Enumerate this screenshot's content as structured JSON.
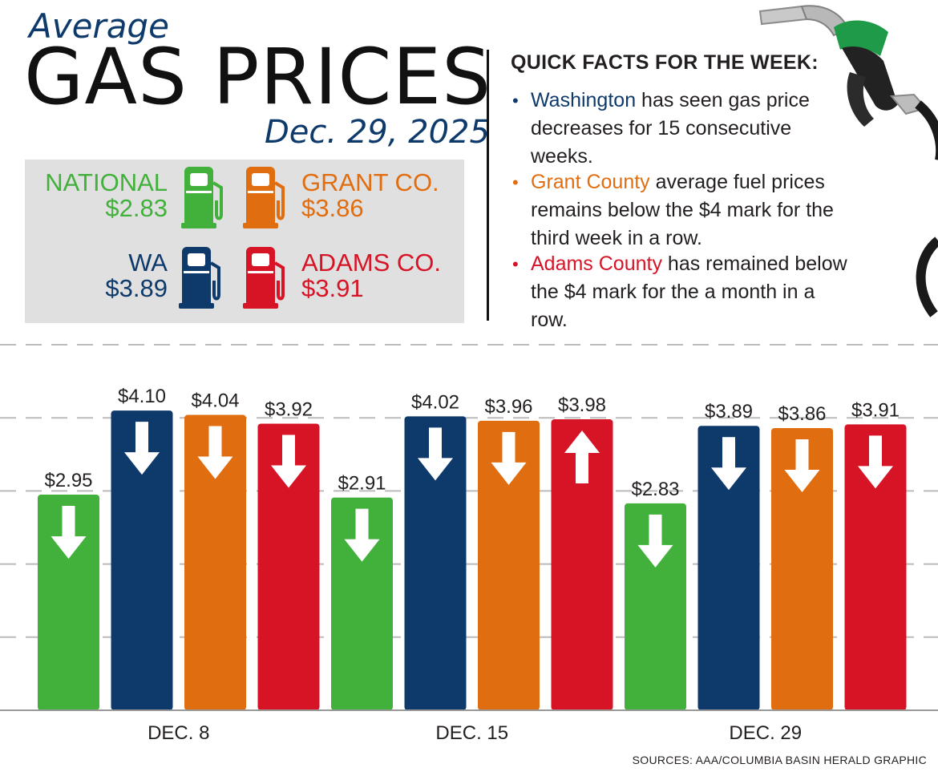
{
  "header": {
    "supertitle": "Average",
    "title": "GAS PRICES",
    "date": "Dec. 29, 2025"
  },
  "summary": {
    "national": {
      "label": "NATIONAL",
      "value": "$2.83",
      "color": "#41b13b"
    },
    "grant": {
      "label": "GRANT CO.",
      "value": "$3.86",
      "color": "#e06e10"
    },
    "wa": {
      "label": "WA",
      "value": "$3.89",
      "color": "#0e3a6b"
    },
    "adams": {
      "label": "ADAMS CO.",
      "value": "$3.91",
      "color": "#d71426"
    }
  },
  "facts": {
    "title": "QUICK FACTS FOR THE WEEK:",
    "items": [
      {
        "highlight": "Washington",
        "rest_line1": " has seen gas price",
        "rest_more": [
          "decreases for 15 consecutive",
          "weeks."
        ],
        "color": "#0e3a6b"
      },
      {
        "highlight": "Grant County",
        "rest_line1": " average fuel prices",
        "rest_more": [
          "remains below the $4 mark for the",
          "third week in a row."
        ],
        "color": "#e06e10"
      },
      {
        "highlight": "Adams County",
        "rest_line1": " has remained below",
        "rest_more": [
          "the $4 mark for the a month in a",
          "row."
        ],
        "color": "#d71426"
      }
    ]
  },
  "chart_data": {
    "type": "bar",
    "categories": [
      "DEC. 8",
      "DEC. 15",
      "DEC. 29"
    ],
    "series": [
      {
        "values": [
          2.95,
          2.91,
          2.83
        ],
        "labels": [
          "$2.95",
          "$2.91",
          "$2.83"
        ],
        "trend": [
          "down",
          "down",
          "down"
        ],
        "color": "#41b13b"
      },
      {
        "values": [
          4.1,
          4.02,
          3.89
        ],
        "labels": [
          "$4.10",
          "$4.02",
          "$3.89"
        ],
        "trend": [
          "down",
          "down",
          "down"
        ],
        "color": "#0e3a6b"
      },
      {
        "values": [
          4.04,
          3.96,
          3.86
        ],
        "labels": [
          "$4.04",
          "$3.96",
          "$3.86"
        ],
        "trend": [
          "down",
          "down",
          "down"
        ],
        "color": "#e06e10"
      },
      {
        "values": [
          3.92,
          3.98,
          3.91
        ],
        "labels": [
          "$3.92",
          "$3.98",
          "$3.91"
        ],
        "trend": [
          "down",
          "up",
          "down"
        ],
        "color": "#d71426"
      }
    ],
    "ylim": [
      0,
      5
    ],
    "grid": true
  },
  "source": "SOURCES: AAA/COLUMBIA BASIN HERALD GRAPHIC"
}
